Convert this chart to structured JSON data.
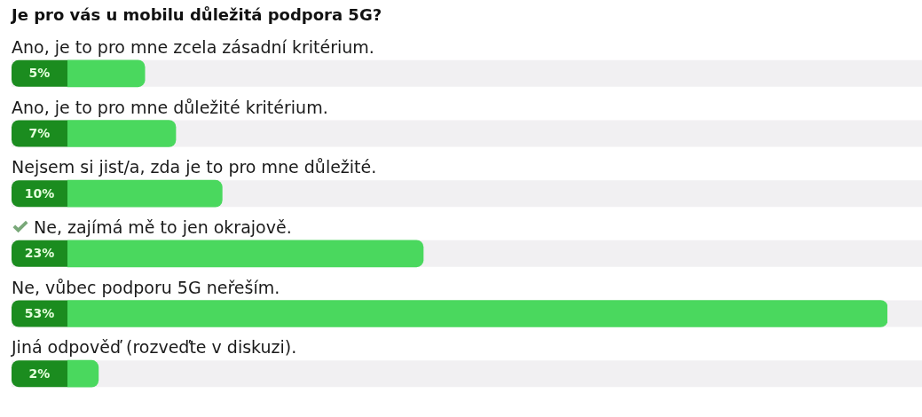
{
  "chart_data": {
    "type": "bar",
    "orientation": "horizontal",
    "title": "Je pro vás u mobilu důležitá podpora 5G?",
    "categories": [
      "Ano, je to pro mne zcela zásadní kritérium.",
      "Ano, je to pro mne důležité kritérium.",
      "Nejsem si jist/a, zda je to pro mne důležité.",
      "Ne, zajímá mě to jen okrajově.",
      "Ne, vůbec podporu 5G neřeším.",
      "Jiná odpověď (rozveďte v diskuzi)."
    ],
    "values": [
      5,
      7,
      10,
      23,
      53,
      2
    ],
    "value_labels": [
      "5%",
      "7%",
      "10%",
      "23%",
      "53%",
      "2%"
    ],
    "color": "#4ad85e"
  }
}
